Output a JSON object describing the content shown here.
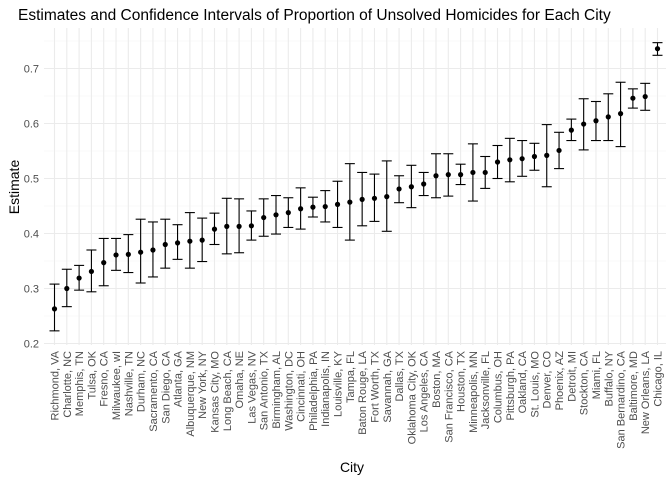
{
  "chart_data": {
    "type": "scatter",
    "subtype": "point-with-errorbars",
    "title": "Estimates and Confidence Intervals of Proportion of Unsolved Homicides for Each City",
    "xlabel": "City",
    "ylabel": "Estimate",
    "ylim": [
      0.2,
      0.75
    ],
    "yticks": [
      "0.2",
      "0.3",
      "0.4",
      "0.5",
      "0.6",
      "0.7"
    ],
    "grid": true,
    "legend": "none",
    "colors": {
      "point": "#000000",
      "grid_major": "#ebebeb",
      "grid_minor": "#f5f5f5",
      "text": "#4d4d4d"
    },
    "points": [
      {
        "city": "Richmond, VA",
        "estimate": 0.263,
        "low": 0.223,
        "high": 0.308
      },
      {
        "city": "Charlotte, NC",
        "estimate": 0.3,
        "low": 0.267,
        "high": 0.335
      },
      {
        "city": "Memphis, TN",
        "estimate": 0.319,
        "low": 0.297,
        "high": 0.342
      },
      {
        "city": "Tulsa, OK",
        "estimate": 0.331,
        "low": 0.294,
        "high": 0.37
      },
      {
        "city": "Fresno, CA",
        "estimate": 0.347,
        "low": 0.305,
        "high": 0.391
      },
      {
        "city": "Milwaukee, wI",
        "estimate": 0.361,
        "low": 0.333,
        "high": 0.391
      },
      {
        "city": "Nashville, TN",
        "estimate": 0.362,
        "low": 0.329,
        "high": 0.398
      },
      {
        "city": "Durham, NC",
        "estimate": 0.366,
        "low": 0.31,
        "high": 0.426
      },
      {
        "city": "Sacramento, CA",
        "estimate": 0.37,
        "low": 0.321,
        "high": 0.421
      },
      {
        "city": "San Diego, CA",
        "estimate": 0.38,
        "low": 0.337,
        "high": 0.426
      },
      {
        "city": "Atlanta, GA",
        "estimate": 0.383,
        "low": 0.353,
        "high": 0.416
      },
      {
        "city": "Albuquerque, NM",
        "estimate": 0.386,
        "low": 0.337,
        "high": 0.438
      },
      {
        "city": "New York, NY",
        "estimate": 0.388,
        "low": 0.349,
        "high": 0.428
      },
      {
        "city": "Kansas City, MO",
        "estimate": 0.408,
        "low": 0.38,
        "high": 0.437
      },
      {
        "city": "Long Beach, CA",
        "estimate": 0.413,
        "low": 0.363,
        "high": 0.464
      },
      {
        "city": "Omaha, NE",
        "estimate": 0.413,
        "low": 0.365,
        "high": 0.463
      },
      {
        "city": "Las Vegas, NV",
        "estimate": 0.414,
        "low": 0.388,
        "high": 0.441
      },
      {
        "city": "San Antonio, TX",
        "estimate": 0.429,
        "low": 0.395,
        "high": 0.463
      },
      {
        "city": "Birmingham, AL",
        "estimate": 0.434,
        "low": 0.399,
        "high": 0.469
      },
      {
        "city": "Washington, DC",
        "estimate": 0.438,
        "low": 0.411,
        "high": 0.465
      },
      {
        "city": "Cincinnati, OH",
        "estimate": 0.445,
        "low": 0.408,
        "high": 0.483
      },
      {
        "city": "Philadelphia, PA",
        "estimate": 0.448,
        "low": 0.43,
        "high": 0.466
      },
      {
        "city": "Indianapolis, IN",
        "estimate": 0.449,
        "low": 0.421,
        "high": 0.478
      },
      {
        "city": "Louisville, KY",
        "estimate": 0.453,
        "low": 0.411,
        "high": 0.495
      },
      {
        "city": "Tampa, FL",
        "estimate": 0.457,
        "low": 0.388,
        "high": 0.527
      },
      {
        "city": "Baton Rouge, LA",
        "estimate": 0.462,
        "low": 0.414,
        "high": 0.511
      },
      {
        "city": "Fort Worth, TX",
        "estimate": 0.464,
        "low": 0.422,
        "high": 0.508
      },
      {
        "city": "Savannah, GA",
        "estimate": 0.467,
        "low": 0.404,
        "high": 0.532
      },
      {
        "city": "Dallas, TX",
        "estimate": 0.481,
        "low": 0.456,
        "high": 0.505
      },
      {
        "city": "Oklahoma City, OK",
        "estimate": 0.485,
        "low": 0.447,
        "high": 0.524
      },
      {
        "city": "Los Angeles, CA",
        "estimate": 0.49,
        "low": 0.469,
        "high": 0.511
      },
      {
        "city": "Boston, MA",
        "estimate": 0.505,
        "low": 0.465,
        "high": 0.545
      },
      {
        "city": "San Francisco, CA",
        "estimate": 0.507,
        "low": 0.468,
        "high": 0.545
      },
      {
        "city": "Houston, TX",
        "estimate": 0.507,
        "low": 0.489,
        "high": 0.526
      },
      {
        "city": "Minneapolis, MN",
        "estimate": 0.511,
        "low": 0.459,
        "high": 0.563
      },
      {
        "city": "Jacksonville, FL",
        "estimate": 0.511,
        "low": 0.482,
        "high": 0.54
      },
      {
        "city": "Columbus, OH",
        "estimate": 0.53,
        "low": 0.5,
        "high": 0.56
      },
      {
        "city": "Pittsburgh, PA",
        "estimate": 0.534,
        "low": 0.494,
        "high": 0.573
      },
      {
        "city": "Oakland, CA",
        "estimate": 0.536,
        "low": 0.504,
        "high": 0.569
      },
      {
        "city": "St. Louis, MO",
        "estimate": 0.54,
        "low": 0.515,
        "high": 0.564
      },
      {
        "city": "Denver, CO",
        "estimate": 0.542,
        "low": 0.485,
        "high": 0.598
      },
      {
        "city": "Phoenix, AZ",
        "estimate": 0.551,
        "low": 0.518,
        "high": 0.584
      },
      {
        "city": "Detroit, MI",
        "estimate": 0.588,
        "low": 0.569,
        "high": 0.608
      },
      {
        "city": "Stockton, CA",
        "estimate": 0.599,
        "low": 0.552,
        "high": 0.645
      },
      {
        "city": "Miami, FL",
        "estimate": 0.605,
        "low": 0.569,
        "high": 0.64
      },
      {
        "city": "Buffalo, NY",
        "estimate": 0.612,
        "low": 0.569,
        "high": 0.654
      },
      {
        "city": "San Bernardino, CA",
        "estimate": 0.618,
        "low": 0.558,
        "high": 0.675
      },
      {
        "city": "Baltimore, MD",
        "estimate": 0.646,
        "low": 0.628,
        "high": 0.663
      },
      {
        "city": "New Orleans, LA",
        "estimate": 0.649,
        "low": 0.624,
        "high": 0.673
      },
      {
        "city": "Chicago, IL",
        "estimate": 0.736,
        "low": 0.724,
        "high": 0.747
      }
    ]
  }
}
